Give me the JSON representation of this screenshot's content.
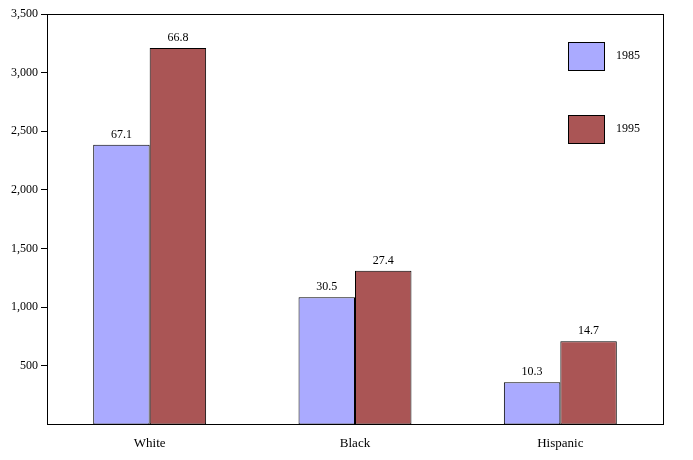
{
  "chart_data": {
    "type": "bar",
    "categories": [
      "White",
      "Black",
      "Hispanic"
    ],
    "series": [
      {
        "name": "1985",
        "color": "#aaaaff",
        "values": [
          2385,
          1085,
          360
        ],
        "percent": [
          67.1,
          30.5,
          10.3
        ]
      },
      {
        "name": "1995",
        "color": "#aa5555",
        "values": [
          3210,
          1310,
          710
        ],
        "percent": [
          66.8,
          27.4,
          14.7
        ]
      }
    ],
    "ylim": [
      0,
      3500
    ],
    "yticks": [
      500,
      {
        "value": 1000,
        "label": "1,000"
      },
      {
        "value": 1500,
        "label": "1,500"
      },
      {
        "value": 2000,
        "label": "2,000"
      },
      {
        "value": 2500,
        "label": "2,500"
      },
      {
        "value": 3000,
        "label": "3,000"
      },
      {
        "value": 3500,
        "label": "3,500"
      }
    ],
    "grid": false,
    "legend": "top-right"
  }
}
